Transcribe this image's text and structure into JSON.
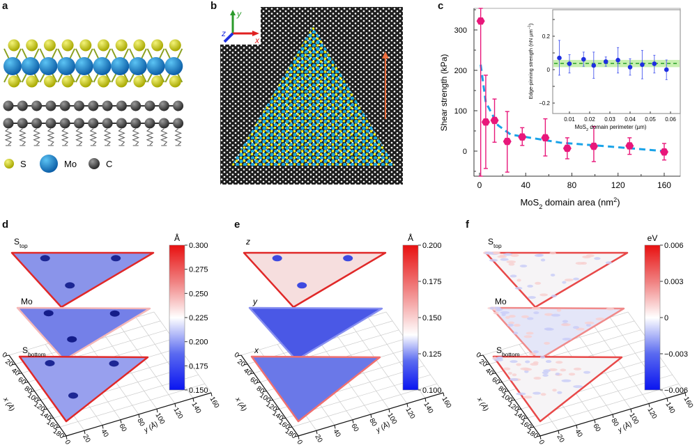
{
  "panels": {
    "a": {
      "label": "a",
      "legend": [
        {
          "symbol": "S",
          "color": "#c8c812"
        },
        {
          "symbol": "Mo",
          "color": "#1a8fd6"
        },
        {
          "symbol": "C",
          "color": "#555555"
        }
      ]
    },
    "b": {
      "label": "b",
      "axes": {
        "x": "x",
        "y": "y",
        "z": "z"
      }
    },
    "c": {
      "label": "c"
    },
    "d": {
      "label": "d",
      "unit": "Å",
      "colorbar_ticks": [
        "0.300",
        "0.275",
        "0.250",
        "0.225",
        "0.200",
        "0.175",
        "0.150"
      ],
      "layers": [
        {
          "main": "S",
          "sub": "top"
        },
        {
          "main": "Mo",
          "sub": ""
        },
        {
          "main": "S",
          "sub": "bottom"
        }
      ]
    },
    "e": {
      "label": "e",
      "unit": "Å",
      "colorbar_ticks": [
        "0.200",
        "0.175",
        "0.150",
        "0.125",
        "0.100"
      ],
      "layers": [
        {
          "main": "z",
          "sub": ""
        },
        {
          "main": "y",
          "sub": ""
        },
        {
          "main": "x",
          "sub": ""
        }
      ]
    },
    "f": {
      "label": "f",
      "unit": "eV",
      "colorbar_ticks": [
        "0.006",
        "0.003",
        "0",
        "−0.003",
        "−0.006"
      ],
      "layers": [
        {
          "main": "S",
          "sub": "top"
        },
        {
          "main": "Mo",
          "sub": ""
        },
        {
          "main": "S",
          "sub": "bottom"
        }
      ]
    }
  },
  "axes3d": {
    "x_ticks": [
      "0",
      "20",
      "40",
      "60",
      "80",
      "100",
      "120",
      "140",
      "160",
      "180"
    ],
    "y_ticks": [
      "0",
      "20",
      "40",
      "60",
      "80",
      "100",
      "120",
      "140",
      "160"
    ],
    "x_label": "x (Å)",
    "y_label": "y (Å)"
  },
  "chart_data": [
    {
      "type": "scatter",
      "ylabel": "Shear strength (kPa)",
      "xlabel": {
        "main": "MoS",
        "sub": "2",
        "rest": " domain area (nm",
        "sup": "2",
        "end": ")"
      },
      "xlim": [
        -2,
        175
      ],
      "ylim": [
        -62,
        360
      ],
      "x_ticks": [
        0,
        40,
        80,
        120,
        160
      ],
      "y_ticks": [
        0,
        100,
        200,
        300
      ],
      "marker_color": "#e8177a",
      "fit_color": "#1aa3e8",
      "points": [
        {
          "x": 1,
          "y": 322,
          "lo": -62,
          "hi": 360
        },
        {
          "x": 5.4,
          "y": 72,
          "lo": -43,
          "hi": 188
        },
        {
          "x": 13,
          "y": 76,
          "lo": 22,
          "hi": 129
        },
        {
          "x": 24,
          "y": 24,
          "lo": -52,
          "hi": 98
        },
        {
          "x": 37,
          "y": 35,
          "lo": 14,
          "hi": 58
        },
        {
          "x": 57,
          "y": 33,
          "lo": -12,
          "hi": 80
        },
        {
          "x": 76,
          "y": 7,
          "lo": -19,
          "hi": 33
        },
        {
          "x": 99,
          "y": 12,
          "lo": -26,
          "hi": 61
        },
        {
          "x": 130,
          "y": 13,
          "lo": -8,
          "hi": 33
        },
        {
          "x": 160,
          "y": -2,
          "lo": -22,
          "hi": 19
        }
      ],
      "fit": [
        [
          1,
          214
        ],
        [
          5.4,
          121
        ],
        [
          16,
          64
        ],
        [
          27,
          41
        ],
        [
          70,
          21
        ],
        [
          110,
          12
        ],
        [
          160,
          0
        ]
      ]
    },
    {
      "type": "scatter",
      "ylabel": {
        "main": "Edge-pinning strength (nN µm",
        "sup": "−1",
        "end": ")"
      },
      "xlabel": {
        "main": "MoS",
        "sub": "2",
        "rest": " domain perimeter (µm)"
      },
      "xlim": [
        0.0,
        0.063
      ],
      "ylim": [
        -0.27,
        0.37
      ],
      "x_ticks": [
        "0.01",
        "0.02",
        "0.03",
        "0.04",
        "0.05",
        "0.06"
      ],
      "y_ticks": [
        "0.2",
        "0",
        "−0.2"
      ],
      "marker_color": "#1f2fe0",
      "mean": 0.037,
      "band": [
        0.015,
        0.058
      ],
      "band_color": "#c8f0b0",
      "mean_color": "#2aa02a",
      "points": [
        {
          "x": 0.005,
          "y": 0.07,
          "lo": -0.033,
          "hi": 0.175
        },
        {
          "x": 0.01,
          "y": 0.035,
          "lo": -0.02,
          "hi": 0.09
        },
        {
          "x": 0.017,
          "y": 0.062,
          "lo": 0.02,
          "hi": 0.105
        },
        {
          "x": 0.022,
          "y": 0.025,
          "lo": -0.052,
          "hi": 0.105
        },
        {
          "x": 0.028,
          "y": 0.048,
          "lo": 0.02,
          "hi": 0.076
        },
        {
          "x": 0.034,
          "y": 0.057,
          "lo": -0.02,
          "hi": 0.132
        },
        {
          "x": 0.04,
          "y": 0.015,
          "lo": -0.033,
          "hi": 0.065
        },
        {
          "x": 0.046,
          "y": 0.03,
          "lo": -0.055,
          "hi": 0.115
        },
        {
          "x": 0.052,
          "y": 0.035,
          "lo": -0.02,
          "hi": 0.086
        },
        {
          "x": 0.058,
          "y": 0.0,
          "lo": -0.06,
          "hi": 0.058
        }
      ]
    }
  ]
}
